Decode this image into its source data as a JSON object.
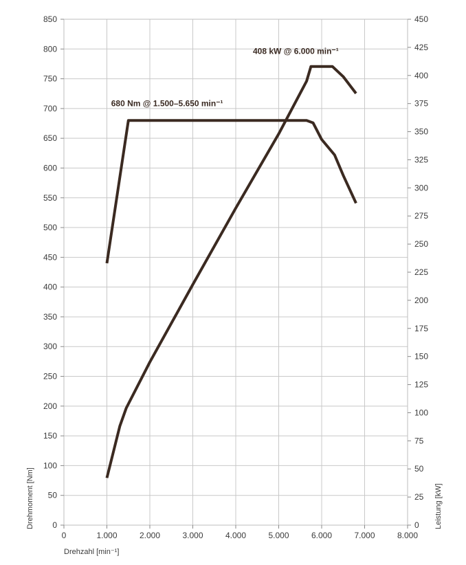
{
  "chart_data": {
    "type": "line",
    "xlabel": "Drehzahl [min⁻¹]",
    "ylabel_left": "Drehmoment [Nm]",
    "ylabel_right": "Leistung [kW]",
    "xlim": [
      0,
      8000
    ],
    "ylim_left": [
      0,
      850
    ],
    "ylim_right": [
      0,
      450
    ],
    "x_ticks": [
      0,
      1000,
      2000,
      3000,
      4000,
      5000,
      6000,
      7000,
      8000
    ],
    "x_tick_labels": [
      "0",
      "1.000",
      "2.000",
      "3.000",
      "4.000",
      "5.000",
      "6.000",
      "7.000",
      "8.000"
    ],
    "y_left_ticks": [
      0,
      50,
      100,
      150,
      200,
      250,
      300,
      350,
      400,
      450,
      500,
      550,
      600,
      650,
      700,
      750,
      800,
      850
    ],
    "y_left_tick_labels": [
      "0",
      "50",
      "100",
      "150",
      "200",
      "250",
      "300",
      "350",
      "400",
      "450",
      "500",
      "550",
      "600",
      "650",
      "700",
      "750",
      "800",
      "850"
    ],
    "y_right_ticks": [
      0,
      25,
      50,
      75,
      100,
      125,
      150,
      175,
      200,
      225,
      250,
      275,
      300,
      325,
      350,
      375,
      400,
      425,
      450
    ],
    "y_right_tick_labels": [
      "0",
      "25",
      "50",
      "75",
      "100",
      "125",
      "150",
      "175",
      "200",
      "225",
      "250",
      "275",
      "300",
      "325",
      "350",
      "375",
      "400",
      "425",
      "450"
    ],
    "grid": true,
    "series": [
      {
        "axis": "left",
        "x": [
          1000,
          1500,
          5650,
          5800,
          6000,
          6300,
          6500,
          6800
        ],
        "y": [
          440,
          680,
          680,
          676,
          648,
          622,
          588,
          541
        ]
      },
      {
        "axis": "right",
        "x": [
          1000,
          1300,
          1450,
          2000,
          3000,
          4000,
          5000,
          5650,
          5750,
          6000,
          6250,
          6500,
          6800
        ],
        "y": [
          42,
          88,
          104,
          145,
          214,
          282,
          348,
          395,
          408,
          408,
          408,
          399,
          384
        ]
      }
    ],
    "annotations": [
      {
        "text": "408 kW @ 6.000 min⁻¹",
        "x": 4400,
        "y_right": 419
      },
      {
        "text": "680 Nm @ 1.500–5.650 min⁻¹",
        "x": 1100,
        "y_left": 704
      }
    ],
    "color": "#3b2a21"
  }
}
